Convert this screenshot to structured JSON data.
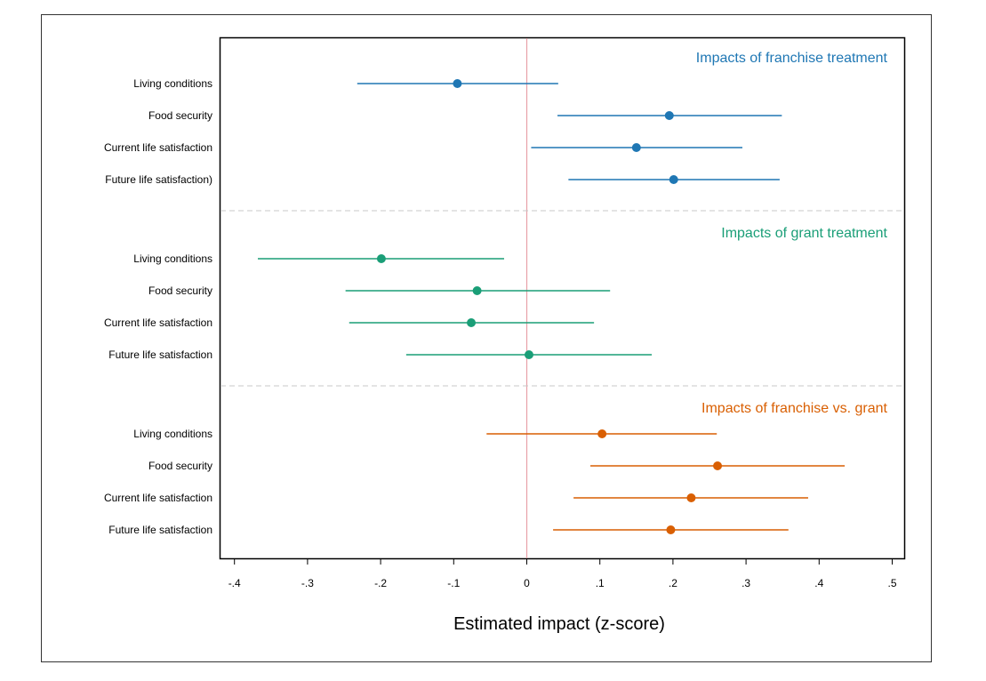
{
  "chart_data": {
    "type": "scatter",
    "xlabel": "Estimated impact (z-score)",
    "ylabel": "",
    "xlim": [
      -0.42,
      0.52
    ],
    "x_ticks": [
      -0.4,
      -0.3,
      -0.2,
      -0.1,
      0,
      0.1,
      0.2,
      0.3,
      0.4,
      0.5
    ],
    "x_tick_labels": [
      "-.4",
      "-.3",
      "-.2",
      "-.1",
      "0",
      ".1",
      ".2",
      ".3",
      ".4",
      ".5"
    ],
    "reference_line": 0,
    "grid": false,
    "legend": "none",
    "groups": [
      {
        "title": "Impacts of franchise treatment",
        "color": "#1f77b4",
        "rows": [
          {
            "label": "Living conditions",
            "estimate": -0.095,
            "ci_low": -0.232,
            "ci_high": 0.043
          },
          {
            "label": "Food security",
            "estimate": 0.195,
            "ci_low": 0.042,
            "ci_high": 0.349
          },
          {
            "label": "Current life satisfaction",
            "estimate": 0.15,
            "ci_low": 0.006,
            "ci_high": 0.295
          },
          {
            "label": "Future life satisfaction)",
            "estimate": 0.201,
            "ci_low": 0.057,
            "ci_high": 0.346
          }
        ]
      },
      {
        "title": "Impacts of grant treatment",
        "color": "#1a9e77",
        "rows": [
          {
            "label": "Living conditions",
            "estimate": -0.199,
            "ci_low": -0.368,
            "ci_high": -0.031
          },
          {
            "label": "Food security",
            "estimate": -0.068,
            "ci_low": -0.248,
            "ci_high": 0.114
          },
          {
            "label": "Current life satisfaction",
            "estimate": -0.076,
            "ci_low": -0.243,
            "ci_high": 0.092
          },
          {
            "label": "Future life satisfaction",
            "estimate": 0.003,
            "ci_low": -0.165,
            "ci_high": 0.171
          }
        ]
      },
      {
        "title": "Impacts of franchise vs. grant",
        "color": "#d95f02",
        "rows": [
          {
            "label": "Living conditions",
            "estimate": 0.103,
            "ci_low": -0.055,
            "ci_high": 0.26
          },
          {
            "label": "Food security",
            "estimate": 0.261,
            "ci_low": 0.087,
            "ci_high": 0.435
          },
          {
            "label": "Current life satisfaction",
            "estimate": 0.225,
            "ci_low": 0.064,
            "ci_high": 0.385
          },
          {
            "label": "Future life satisfaction",
            "estimate": 0.197,
            "ci_low": 0.036,
            "ci_high": 0.358
          }
        ]
      }
    ]
  }
}
